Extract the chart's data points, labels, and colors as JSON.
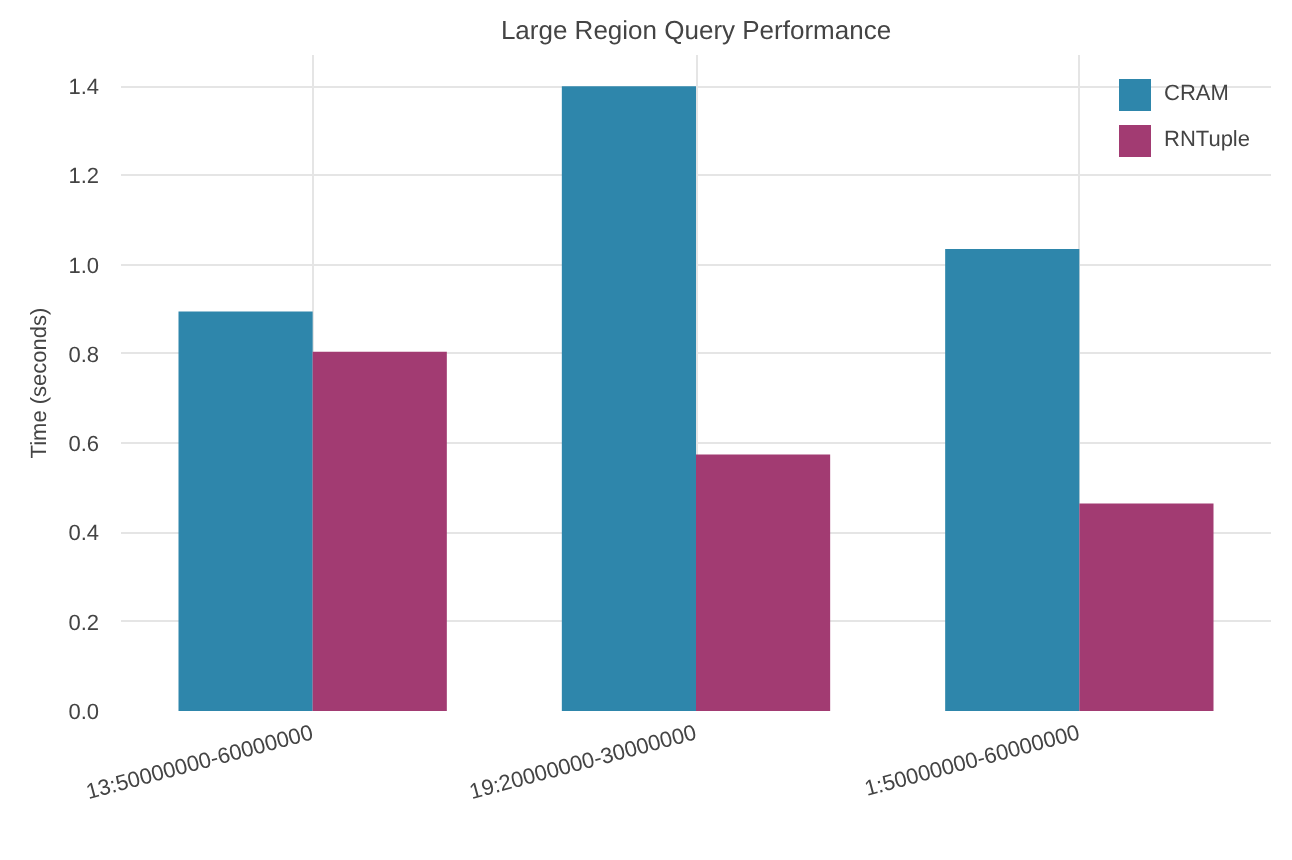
{
  "chart_data": {
    "type": "bar",
    "title": "Large Region Query Performance",
    "ylabel": "Time (seconds)",
    "categories": [
      "13:50000000-60000000",
      "19:20000000-30000000",
      "1:50000000-60000000"
    ],
    "series": [
      {
        "name": "CRAM",
        "color": "#2e86ab",
        "values": [
          0.895,
          1.4,
          1.035
        ]
      },
      {
        "name": "RNTuple",
        "color": "#a23b72",
        "values": [
          0.805,
          0.575,
          0.465
        ]
      }
    ],
    "ylim": [
      0,
      1.47
    ],
    "yticks": [
      {
        "value": 0,
        "label": "0.0"
      },
      {
        "value": 0.2,
        "label": "0.2"
      },
      {
        "value": 0.4,
        "label": "0.4"
      },
      {
        "value": 0.6,
        "label": "0.6"
      },
      {
        "value": 0.8,
        "label": "0.8"
      },
      {
        "value": 1.0,
        "label": "1.0"
      },
      {
        "value": 1.2,
        "label": "1.2"
      },
      {
        "value": 1.4,
        "label": "1.4"
      }
    ],
    "grid": true,
    "legend": "top right"
  }
}
